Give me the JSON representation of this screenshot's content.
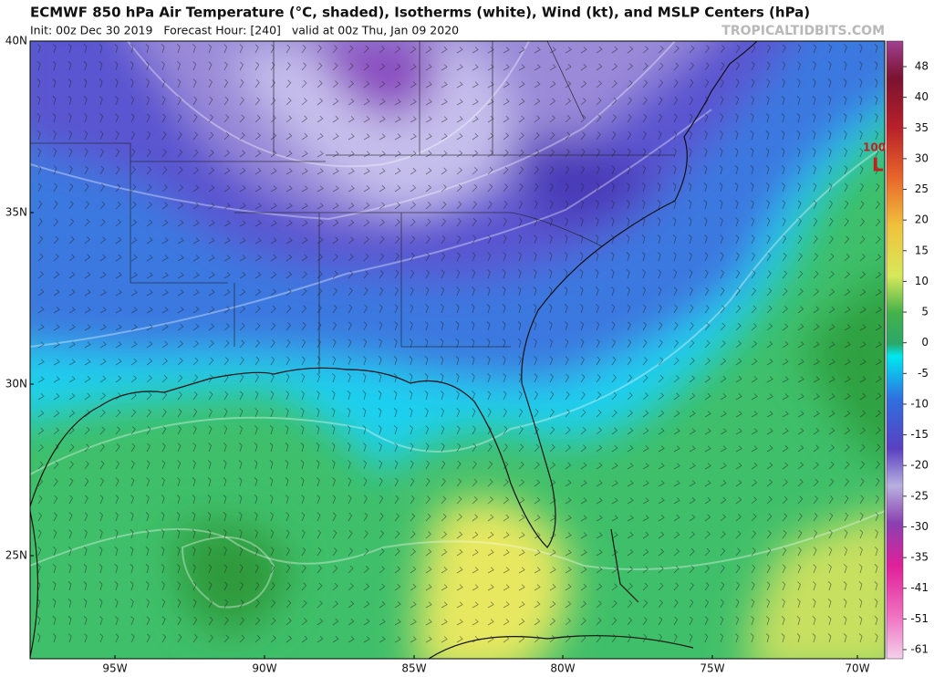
{
  "header": {
    "title": "ECMWF 850 hPa Air Temperature (°C, shaded), Isotherms (white), Wind (kt), and MSLP Centers (hPa)",
    "subtitle": "Init: 00z Dec 30 2019   Forecast Hour: [240]   valid at 00z Thu, Jan 09 2020",
    "watermark": "TROPICALTIDBITS.COM"
  },
  "map": {
    "latitude_labels": [
      "40N",
      "35N",
      "30N",
      "25N"
    ],
    "longitude_labels": [
      "95W",
      "90W",
      "85W",
      "80W",
      "75W",
      "70W"
    ],
    "pressure_center": {
      "value": "100",
      "symbol": "L"
    }
  },
  "colorbar": {
    "labels": [
      "48",
      "40",
      "35",
      "30",
      "25",
      "20",
      "15",
      "10",
      "5",
      "0",
      "-5",
      "-10",
      "-15",
      "-20",
      "-25",
      "-30",
      "-35",
      "-41",
      "-51",
      "-61"
    ]
  }
}
